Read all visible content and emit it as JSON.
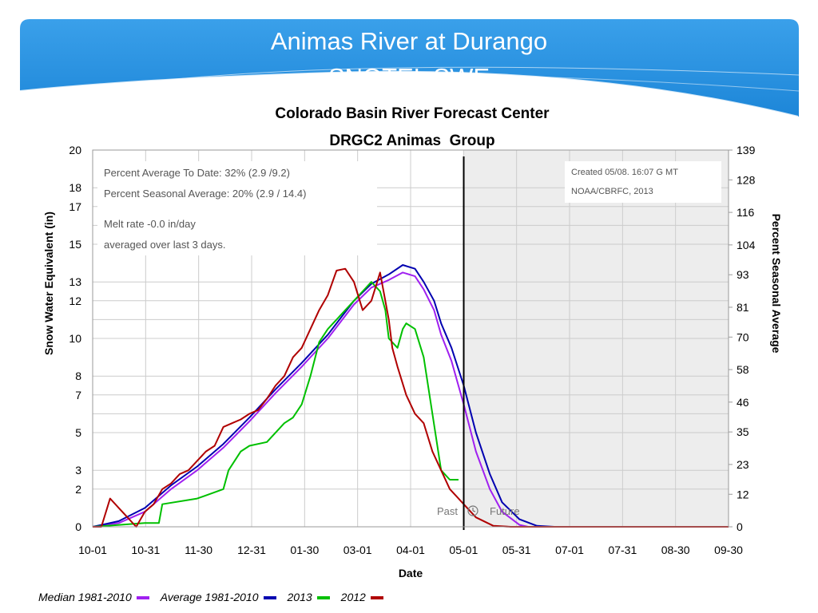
{
  "slide": {
    "title_line1": "Animas River at Durango",
    "title_line2": "SNOTEL SWE",
    "banner_color": "#2b93e0"
  },
  "chart_data": {
    "type": "line",
    "title": "Colorado Basin River Forecast Center",
    "subtitle": "DRGC2 Animas  Group",
    "xlabel": "Date",
    "ylabel": "Snow Water Equivalent (in)",
    "y2label": "Percent Seasonal Average",
    "x_ticks": [
      "10-01",
      "10-31",
      "11-30",
      "12-31",
      "01-30",
      "03-01",
      "04-01",
      "05-01",
      "05-31",
      "07-01",
      "07-31",
      "08-30",
      "09-30"
    ],
    "y_ticks": [
      0,
      2,
      3,
      5,
      6,
      7,
      8,
      10,
      11,
      12,
      13,
      15,
      16,
      17,
      18,
      20
    ],
    "y_tick_labels": [
      "0",
      "2",
      "3",
      "5",
      "",
      "7",
      "8",
      "10",
      "",
      "12",
      "13",
      "15",
      "",
      "17",
      "18",
      "20"
    ],
    "ylim": [
      0,
      20
    ],
    "y2_ticks": [
      0,
      12,
      23,
      35,
      46,
      58,
      70,
      81,
      93,
      104,
      116,
      128,
      139
    ],
    "y2lim": [
      0,
      139
    ],
    "xlim": [
      0,
      365
    ],
    "grid": true,
    "future_shade_start": 213,
    "future_shade_color": "#ededed",
    "today_line_x": 213,
    "past_label": "Past",
    "future_label": "Future",
    "info_lines": [
      "Percent Average To Date: 32% (2.9 /9.2)",
      "Percent Seasonal Average: 20% (2.9 / 14.4)",
      "Melt rate -0.0 in/day",
      "averaged over last 3 days."
    ],
    "created_lines": [
      "Created 05/08. 16:07 G MT",
      "NOAA/CBRFC, 2013"
    ],
    "series": [
      {
        "name": "Median 1981-2010",
        "color": "#a020f0",
        "x": [
          0,
          15,
          30,
          45,
          60,
          75,
          90,
          105,
          120,
          135,
          150,
          160,
          170,
          178,
          185,
          190,
          196,
          200,
          206,
          213,
          220,
          228,
          235,
          245,
          250
        ],
        "y": [
          0,
          0.2,
          0.8,
          2.0,
          3.0,
          4.2,
          5.6,
          7.1,
          8.5,
          10.0,
          11.8,
          12.7,
          13.1,
          13.5,
          13.3,
          12.6,
          11.5,
          10.2,
          8.8,
          6.5,
          4.0,
          2.0,
          0.8,
          0.1,
          0
        ]
      },
      {
        "name": "Average 1981-2010",
        "color": "#0000b0",
        "x": [
          0,
          15,
          30,
          45,
          60,
          75,
          90,
          105,
          120,
          135,
          150,
          160,
          170,
          178,
          185,
          190,
          196,
          200,
          206,
          213,
          220,
          228,
          235,
          245,
          255,
          265
        ],
        "y": [
          0,
          0.3,
          1.0,
          2.2,
          3.2,
          4.4,
          5.8,
          7.3,
          8.7,
          10.2,
          12.0,
          12.9,
          13.4,
          13.9,
          13.7,
          13.0,
          12.0,
          10.8,
          9.5,
          7.5,
          5.0,
          2.8,
          1.3,
          0.4,
          0.05,
          0
        ]
      },
      {
        "name": "2013",
        "color": "#00c000",
        "x": [
          0,
          30,
          38,
          40,
          60,
          75,
          78,
          85,
          90,
          100,
          110,
          115,
          120,
          125,
          130,
          135,
          140,
          145,
          150,
          155,
          160,
          165,
          168,
          170,
          175,
          178,
          180,
          185,
          190,
          195,
          200,
          205,
          210
        ],
        "y": [
          0,
          0.2,
          0.2,
          1.2,
          1.5,
          2.0,
          3.0,
          4.0,
          4.3,
          4.5,
          5.5,
          5.8,
          6.5,
          8.0,
          9.8,
          10.5,
          11.0,
          11.5,
          12.0,
          12.5,
          13.0,
          12.5,
          11.5,
          10.0,
          9.5,
          10.5,
          10.8,
          10.5,
          9.0,
          6.0,
          3.0,
          2.5,
          2.5
        ]
      },
      {
        "name": "2012",
        "color": "#b00000",
        "x": [
          0,
          5,
          10,
          15,
          20,
          25,
          30,
          35,
          40,
          45,
          50,
          55,
          60,
          65,
          70,
          75,
          80,
          85,
          90,
          95,
          100,
          105,
          110,
          115,
          120,
          125,
          130,
          135,
          140,
          145,
          150,
          155,
          160,
          165,
          170,
          172,
          175,
          180,
          185,
          190,
          195,
          200,
          205,
          210,
          213,
          220,
          230,
          240,
          250,
          365
        ],
        "y": [
          0,
          0,
          1.5,
          1.0,
          0.5,
          0,
          0.8,
          1.2,
          2.0,
          2.3,
          2.8,
          3.0,
          3.5,
          4.0,
          4.3,
          5.3,
          5.5,
          5.7,
          6.0,
          6.2,
          6.8,
          7.5,
          8.0,
          9.0,
          9.5,
          10.5,
          11.5,
          12.3,
          13.6,
          13.7,
          13.0,
          11.5,
          12.0,
          13.5,
          11.0,
          9.5,
          8.5,
          7.0,
          6.0,
          5.5,
          4.0,
          3.0,
          2.0,
          1.5,
          1.2,
          0.5,
          0.05,
          0,
          0,
          0
        ]
      }
    ]
  }
}
